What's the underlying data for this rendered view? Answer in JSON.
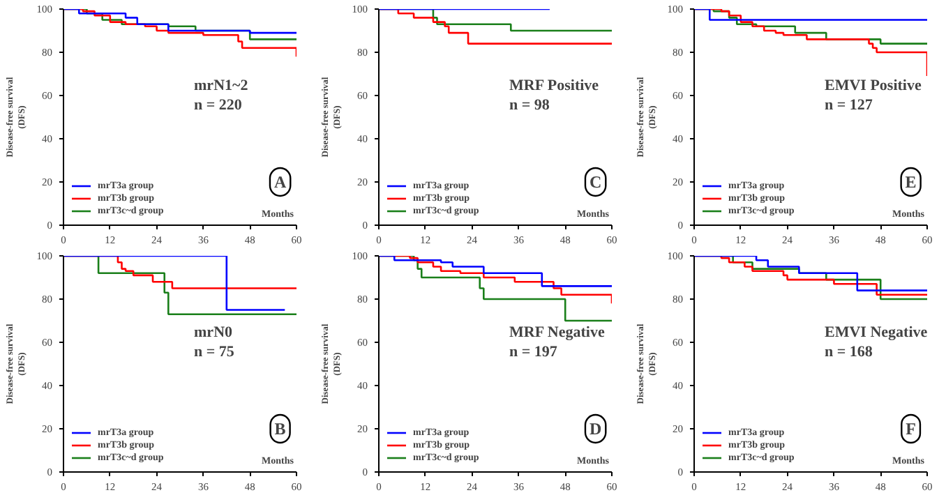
{
  "chart_data": [
    {
      "type": "step",
      "ylabel": "Disease-free survival\n(DFS)",
      "xlabel": "Months",
      "annotations": [
        "mrN1~2\nn = 220",
        "A"
      ],
      "xlim": [
        0,
        60
      ],
      "ylim": [
        0,
        100
      ],
      "xticks": [
        0,
        12,
        24,
        36,
        48,
        60
      ],
      "yticks": [
        0,
        20,
        40,
        60,
        80,
        100
      ],
      "grid": false,
      "legend": "bottom left",
      "series": [
        {
          "name": "mrT3a group",
          "color": "#0000ff",
          "x": [
            0,
            4,
            16,
            19,
            27,
            48,
            60
          ],
          "values": [
            100,
            98,
            96,
            93,
            90,
            89,
            89
          ]
        },
        {
          "name": "mrT3b group",
          "color": "#ff0000",
          "x": [
            0,
            5,
            8,
            12,
            16,
            21,
            24,
            27,
            36,
            45,
            46,
            60,
            60
          ],
          "values": [
            100,
            99,
            97,
            94,
            93,
            92,
            90,
            89,
            88,
            85,
            82,
            82,
            78
          ]
        },
        {
          "name": "mrT3c~d group",
          "color": "#1a7f1a",
          "x": [
            0,
            6,
            10,
            15,
            27,
            34,
            48,
            60
          ],
          "values": [
            100,
            98,
            95,
            93,
            92,
            90,
            86,
            86
          ]
        }
      ]
    },
    {
      "type": "step",
      "ylabel": "Disease-free survival\n(DFS)",
      "xlabel": "Months",
      "annotations": [
        "MRF Positive\nn = 98",
        "C"
      ],
      "xlim": [
        0,
        60
      ],
      "ylim": [
        0,
        100
      ],
      "xticks": [
        0,
        12,
        24,
        36,
        48,
        60
      ],
      "yticks": [
        0,
        20,
        40,
        60,
        80,
        100
      ],
      "grid": false,
      "legend": "bottom left",
      "series": [
        {
          "name": "mrT3a group",
          "color": "#0000ff",
          "x": [
            0,
            44
          ],
          "values": [
            100,
            100
          ]
        },
        {
          "name": "mrT3b group",
          "color": "#ff0000",
          "x": [
            0,
            5,
            9,
            14,
            17,
            18,
            23,
            60
          ],
          "values": [
            100,
            98,
            96,
            94,
            92,
            89,
            84,
            84
          ]
        },
        {
          "name": "mrT3c~d group",
          "color": "#1a7f1a",
          "x": [
            0,
            14,
            15,
            34,
            60
          ],
          "values": [
            100,
            96,
            93,
            90,
            90
          ]
        }
      ]
    },
    {
      "type": "step",
      "ylabel": "Disease-free survival\n(DFS)",
      "xlabel": "Months",
      "annotations": [
        "EMVI Positive\nn = 127",
        "E"
      ],
      "xlim": [
        0,
        60
      ],
      "ylim": [
        0,
        100
      ],
      "xticks": [
        0,
        12,
        24,
        36,
        48,
        60
      ],
      "yticks": [
        0,
        20,
        40,
        60,
        80,
        100
      ],
      "grid": false,
      "legend": "bottom left",
      "series": [
        {
          "name": "mrT3a group",
          "color": "#0000ff",
          "x": [
            0,
            4,
            24,
            44,
            60
          ],
          "values": [
            100,
            95,
            95,
            95,
            95
          ]
        },
        {
          "name": "mrT3b group",
          "color": "#ff0000",
          "x": [
            0,
            7,
            9,
            12,
            15,
            18,
            21,
            23,
            29,
            36,
            45,
            46,
            47,
            60,
            60
          ],
          "values": [
            100,
            99,
            97,
            94,
            92,
            90,
            89,
            88,
            86,
            86,
            84,
            82,
            80,
            80,
            69
          ]
        },
        {
          "name": "mrT3c~d group",
          "color": "#1a7f1a",
          "x": [
            0,
            5,
            9,
            11,
            16,
            26,
            34,
            48,
            60
          ],
          "values": [
            100,
            99,
            96,
            93,
            92,
            89,
            86,
            84,
            84
          ]
        }
      ]
    },
    {
      "type": "step",
      "ylabel": "Disease-free survival\n(DFS)",
      "xlabel": "Months",
      "annotations": [
        "mrN0\nn = 75",
        "B"
      ],
      "xlim": [
        0,
        60
      ],
      "ylim": [
        0,
        100
      ],
      "xticks": [
        0,
        12,
        24,
        36,
        48,
        60
      ],
      "yticks": [
        0,
        20,
        40,
        60,
        80,
        100
      ],
      "grid": false,
      "legend": "bottom left",
      "series": [
        {
          "name": "mrT3a group",
          "color": "#0000ff",
          "x": [
            0,
            24,
            42,
            50,
            57
          ],
          "values": [
            100,
            100,
            75,
            75,
            75
          ]
        },
        {
          "name": "mrT3b group",
          "color": "#ff0000",
          "x": [
            0,
            14,
            15,
            16,
            18,
            23,
            28,
            60
          ],
          "values": [
            100,
            97,
            94,
            93,
            91,
            88,
            85,
            85
          ]
        },
        {
          "name": "mrT3c~d group",
          "color": "#1a7f1a",
          "x": [
            0,
            9,
            26,
            27,
            60
          ],
          "values": [
            100,
            92,
            83,
            73,
            73
          ]
        }
      ]
    },
    {
      "type": "step",
      "ylabel": "Disease-free survival\n(DFS)",
      "xlabel": "Months",
      "annotations": [
        "MRF Negative\nn = 197",
        "D"
      ],
      "xlim": [
        0,
        60
      ],
      "ylim": [
        0,
        100
      ],
      "xticks": [
        0,
        12,
        24,
        36,
        48,
        60
      ],
      "yticks": [
        0,
        20,
        40,
        60,
        80,
        100
      ],
      "grid": false,
      "legend": "bottom left",
      "series": [
        {
          "name": "mrT3a group",
          "color": "#0000ff",
          "x": [
            0,
            4,
            16,
            19,
            27,
            42,
            60
          ],
          "values": [
            100,
            98,
            97,
            95,
            92,
            86,
            86
          ]
        },
        {
          "name": "mrT3b group",
          "color": "#ff0000",
          "x": [
            0,
            8,
            10,
            14,
            16,
            21,
            27,
            35,
            45,
            47,
            60,
            60
          ],
          "values": [
            100,
            99,
            97,
            95,
            93,
            92,
            90,
            88,
            85,
            82,
            82,
            78
          ]
        },
        {
          "name": "mrT3c~d group",
          "color": "#1a7f1a",
          "x": [
            0,
            9,
            10,
            11,
            26,
            27,
            48,
            60
          ],
          "values": [
            100,
            98,
            94,
            90,
            85,
            80,
            70,
            70
          ]
        }
      ]
    },
    {
      "type": "step",
      "ylabel": "Disease-free survival\n(DFS)",
      "xlabel": "Months",
      "annotations": [
        "EMVI Negative\nn = 168",
        "F"
      ],
      "xlim": [
        0,
        60
      ],
      "ylim": [
        0,
        100
      ],
      "xticks": [
        0,
        12,
        24,
        36,
        48,
        60
      ],
      "yticks": [
        0,
        20,
        40,
        60,
        80,
        100
      ],
      "grid": false,
      "legend": "bottom left",
      "series": [
        {
          "name": "mrT3a group",
          "color": "#0000ff",
          "x": [
            0,
            16,
            19,
            27,
            42,
            60
          ],
          "values": [
            100,
            98,
            95,
            92,
            84,
            84
          ]
        },
        {
          "name": "mrT3b group",
          "color": "#ff0000",
          "x": [
            0,
            7,
            9,
            13,
            15,
            23,
            24,
            36,
            47,
            60
          ],
          "values": [
            100,
            99,
            97,
            95,
            93,
            91,
            89,
            87,
            82,
            82
          ]
        },
        {
          "name": "mrT3c~d group",
          "color": "#1a7f1a",
          "x": [
            0,
            10,
            15,
            27,
            34,
            48,
            60
          ],
          "values": [
            100,
            97,
            94,
            92,
            89,
            80,
            80
          ]
        }
      ]
    }
  ]
}
